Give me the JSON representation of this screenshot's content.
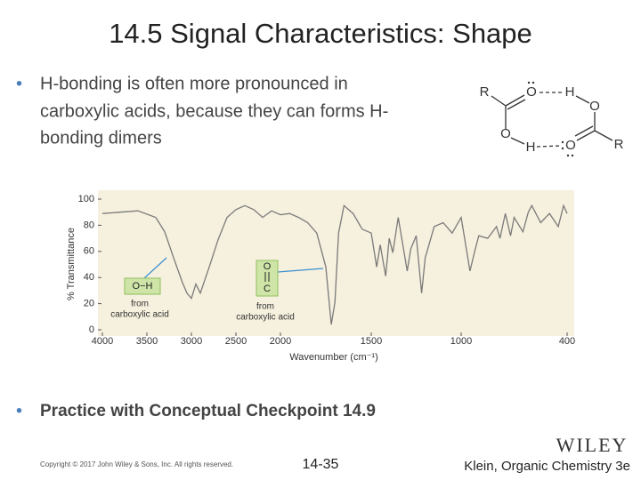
{
  "title": "14.5 Signal Characteristics: Shape",
  "bullets": [
    {
      "lines": [
        "H-bonding is often more pronounced in",
        "carboxylic acids, because they can forms H-",
        "bonding dimers"
      ]
    },
    {
      "lines": [
        "Practice with Conceptual Checkpoint 14.9"
      ]
    }
  ],
  "structure": {
    "atoms": [
      "R",
      "O",
      "H",
      "O",
      "O",
      "H",
      "O",
      "R"
    ]
  },
  "chart_data": {
    "type": "line",
    "x_label": "Wavenumber (cm⁻¹)",
    "y_label": "% Transmittance",
    "xlim": [
      4000,
      400
    ],
    "xticks": [
      4000,
      3500,
      3000,
      2500,
      2000,
      1500,
      1000,
      400
    ],
    "ylim": [
      0,
      100
    ],
    "yticks": [
      0,
      20,
      40,
      60,
      80,
      100
    ],
    "series": [
      {
        "color": "#7a7a7a",
        "x": [
          4000,
          3800,
          3600,
          3400,
          3300,
          3200,
          3100,
          3050,
          3000,
          2950,
          2900,
          2850,
          2800,
          2700,
          2600,
          2500,
          2400,
          2300,
          2200,
          2100,
          2000,
          1950,
          1900,
          1850,
          1800,
          1750,
          1720,
          1700,
          1680,
          1650,
          1600,
          1550,
          1500,
          1470,
          1450,
          1420,
          1400,
          1380,
          1350,
          1300,
          1280,
          1250,
          1220,
          1200,
          1150,
          1100,
          1050,
          1000,
          950,
          920,
          900,
          850,
          800,
          780,
          750,
          720,
          700,
          650,
          620,
          600,
          550,
          500,
          450,
          420,
          400
        ],
        "values": [
          89,
          90,
          91,
          86,
          75,
          55,
          36,
          28,
          24,
          35,
          28,
          38,
          48,
          69,
          86,
          92,
          95,
          92,
          86,
          91,
          88,
          89,
          86,
          82,
          74,
          48,
          4,
          21,
          74,
          95,
          89,
          77,
          74,
          48,
          65,
          41,
          70,
          59,
          86,
          45,
          62,
          72,
          28,
          55,
          79,
          82,
          74,
          86,
          45,
          62,
          72,
          70,
          79,
          70,
          89,
          72,
          86,
          75,
          90,
          95,
          82,
          89,
          79,
          95,
          89
        ]
      }
    ],
    "annotations": [
      {
        "label": "O−H",
        "text": [
          "from",
          "carboxylic acid"
        ]
      },
      {
        "label": [
          "O",
          "C"
        ],
        "text": [
          "from",
          "carboxylic acid"
        ]
      }
    ]
  },
  "footer": {
    "copyright": "Copyright © 2017 John Wiley & Sons, Inc. All rights reserved.",
    "page": "14-35",
    "publisher": "WILEY",
    "book": "Klein, Organic Chemistry 3e"
  }
}
